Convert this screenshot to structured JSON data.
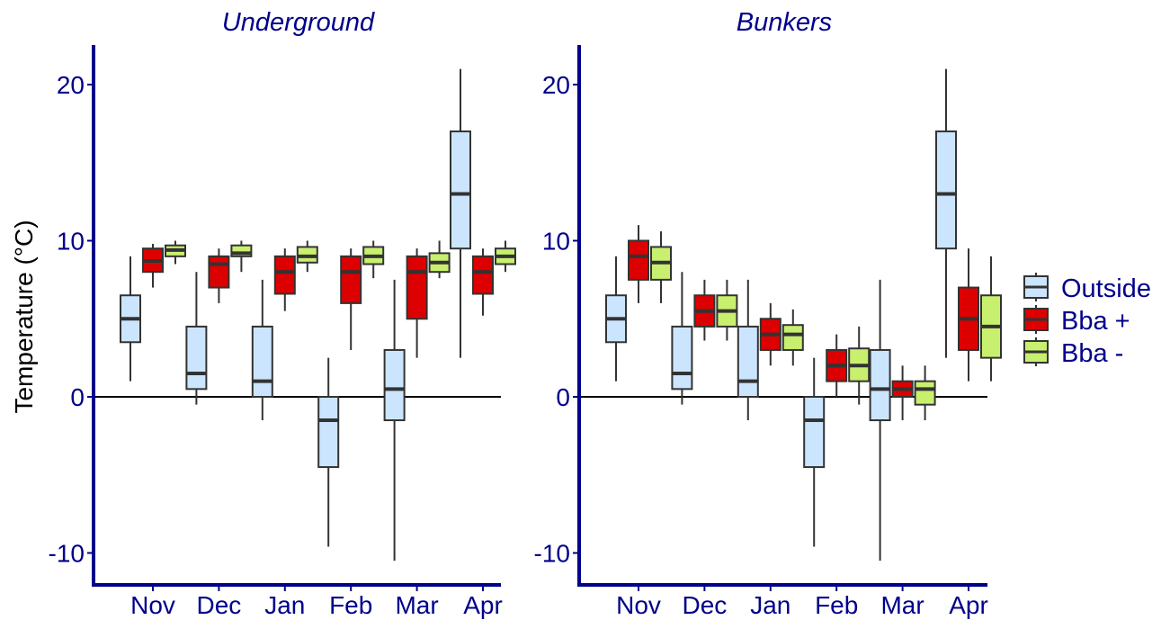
{
  "chart_data": {
    "type": "boxplot",
    "ylabel": "Temperature (°C)",
    "ylim": [
      -12,
      22.5
    ],
    "yticks": [
      -10,
      0,
      10,
      20
    ],
    "yticklabels": [
      "-10",
      "0",
      "10",
      "20"
    ],
    "categories": [
      "Nov",
      "Dec",
      "Jan",
      "Feb",
      "Mar",
      "Apr"
    ],
    "reference_line": 0,
    "legend": {
      "placement": "right",
      "entries": [
        {
          "name": "Outside",
          "color": "#cce5ff"
        },
        {
          "name": "Bba +",
          "color": "#dd0000"
        },
        {
          "name": "Bba -",
          "color": "#c8f06e"
        }
      ]
    },
    "colors": {
      "axis": "#00008b",
      "text": "#00008b",
      "box_border": "#333333",
      "median": "#333333",
      "whisker": "#333333",
      "zero_line": "#000000"
    },
    "panels": [
      {
        "title": "Underground",
        "groups": [
          {
            "category": "Nov",
            "boxes": [
              {
                "series": "Outside",
                "min": 1,
                "q1": 3.5,
                "median": 5,
                "q3": 6.5,
                "max": 9
              },
              {
                "series": "Bba +",
                "min": 7,
                "q1": 8,
                "median": 8.7,
                "q3": 9.5,
                "max": 9.8
              },
              {
                "series": "Bba -",
                "min": 8.5,
                "q1": 9,
                "median": 9.4,
                "q3": 9.7,
                "max": 10
              }
            ]
          },
          {
            "category": "Dec",
            "boxes": [
              {
                "series": "Outside",
                "min": -0.5,
                "q1": 0.5,
                "median": 1.5,
                "q3": 4.5,
                "max": 8
              },
              {
                "series": "Bba +",
                "min": 6,
                "q1": 7,
                "median": 8.5,
                "q3": 9,
                "max": 9.5
              },
              {
                "series": "Bba -",
                "min": 8,
                "q1": 9,
                "median": 9.2,
                "q3": 9.7,
                "max": 10
              }
            ]
          },
          {
            "category": "Jan",
            "boxes": [
              {
                "series": "Outside",
                "min": -1.5,
                "q1": 0,
                "median": 1,
                "q3": 4.5,
                "max": 7.5
              },
              {
                "series": "Bba +",
                "min": 5.5,
                "q1": 6.6,
                "median": 8,
                "q3": 9,
                "max": 9.5
              },
              {
                "series": "Bba -",
                "min": 8,
                "q1": 8.6,
                "median": 9,
                "q3": 9.6,
                "max": 10
              }
            ]
          },
          {
            "category": "Feb",
            "boxes": [
              {
                "series": "Outside",
                "min": -9.6,
                "q1": -4.5,
                "median": -1.5,
                "q3": 0,
                "max": 2.5
              },
              {
                "series": "Bba +",
                "min": 3,
                "q1": 6,
                "median": 8,
                "q3": 9,
                "max": 9.5
              },
              {
                "series": "Bba -",
                "min": 7.6,
                "q1": 8.5,
                "median": 9,
                "q3": 9.6,
                "max": 10
              }
            ]
          },
          {
            "category": "Mar",
            "boxes": [
              {
                "series": "Outside",
                "min": -10.5,
                "q1": -1.5,
                "median": 0.5,
                "q3": 3,
                "max": 7.5
              },
              {
                "series": "Bba +",
                "min": 2.5,
                "q1": 5,
                "median": 8,
                "q3": 9,
                "max": 9.5
              },
              {
                "series": "Bba -",
                "min": 7.6,
                "q1": 8,
                "median": 8.6,
                "q3": 9.2,
                "max": 10
              }
            ]
          },
          {
            "category": "Apr",
            "boxes": [
              {
                "series": "Outside",
                "min": 2.5,
                "q1": 9.5,
                "median": 13,
                "q3": 17,
                "max": 21
              },
              {
                "series": "Bba +",
                "min": 5.2,
                "q1": 6.6,
                "median": 8,
                "q3": 9,
                "max": 9.5
              },
              {
                "series": "Bba -",
                "min": 8,
                "q1": 8.5,
                "median": 9,
                "q3": 9.5,
                "max": 10
              }
            ]
          }
        ]
      },
      {
        "title": "Bunkers",
        "groups": [
          {
            "category": "Nov",
            "boxes": [
              {
                "series": "Outside",
                "min": 1,
                "q1": 3.5,
                "median": 5,
                "q3": 6.5,
                "max": 9
              },
              {
                "series": "Bba +",
                "min": 6,
                "q1": 7.5,
                "median": 9,
                "q3": 10,
                "max": 11
              },
              {
                "series": "Bba -",
                "min": 6,
                "q1": 7.5,
                "median": 8.6,
                "q3": 9.6,
                "max": 10.6
              }
            ]
          },
          {
            "category": "Dec",
            "boxes": [
              {
                "series": "Outside",
                "min": -0.5,
                "q1": 0.5,
                "median": 1.5,
                "q3": 4.5,
                "max": 8
              },
              {
                "series": "Bba +",
                "min": 3.6,
                "q1": 4.5,
                "median": 5.5,
                "q3": 6.5,
                "max": 7.5
              },
              {
                "series": "Bba -",
                "min": 3.6,
                "q1": 4.5,
                "median": 5.5,
                "q3": 6.5,
                "max": 7.5
              }
            ]
          },
          {
            "category": "Jan",
            "boxes": [
              {
                "series": "Outside",
                "min": -1.5,
                "q1": 0,
                "median": 1,
                "q3": 4.5,
                "max": 7.5
              },
              {
                "series": "Bba +",
                "min": 2,
                "q1": 3,
                "median": 4,
                "q3": 5,
                "max": 6
              },
              {
                "series": "Bba -",
                "min": 2,
                "q1": 3,
                "median": 4,
                "q3": 4.6,
                "max": 5.6
              }
            ]
          },
          {
            "category": "Feb",
            "boxes": [
              {
                "series": "Outside",
                "min": -9.6,
                "q1": -4.5,
                "median": -1.5,
                "q3": 0,
                "max": 2.5
              },
              {
                "series": "Bba +",
                "min": 0,
                "q1": 1,
                "median": 2,
                "q3": 3,
                "max": 4
              },
              {
                "series": "Bba -",
                "min": -0.5,
                "q1": 1,
                "median": 2,
                "q3": 3.1,
                "max": 4.5
              }
            ]
          },
          {
            "category": "Mar",
            "boxes": [
              {
                "series": "Outside",
                "min": -10.5,
                "q1": -1.5,
                "median": 0.5,
                "q3": 3,
                "max": 7.5
              },
              {
                "series": "Bba +",
                "min": -1.5,
                "q1": 0,
                "median": 0.5,
                "q3": 1,
                "max": 2
              },
              {
                "series": "Bba -",
                "min": -1.5,
                "q1": -0.5,
                "median": 0.5,
                "q3": 1,
                "max": 2
              }
            ]
          },
          {
            "category": "Apr",
            "boxes": [
              {
                "series": "Outside",
                "min": 2.5,
                "q1": 9.5,
                "median": 13,
                "q3": 17,
                "max": 21
              },
              {
                "series": "Bba +",
                "min": 1,
                "q1": 3,
                "median": 5,
                "q3": 7,
                "max": 9.5
              },
              {
                "series": "Bba -",
                "min": 1,
                "q1": 2.5,
                "median": 4.5,
                "q3": 6.5,
                "max": 9
              }
            ]
          }
        ]
      }
    ]
  }
}
